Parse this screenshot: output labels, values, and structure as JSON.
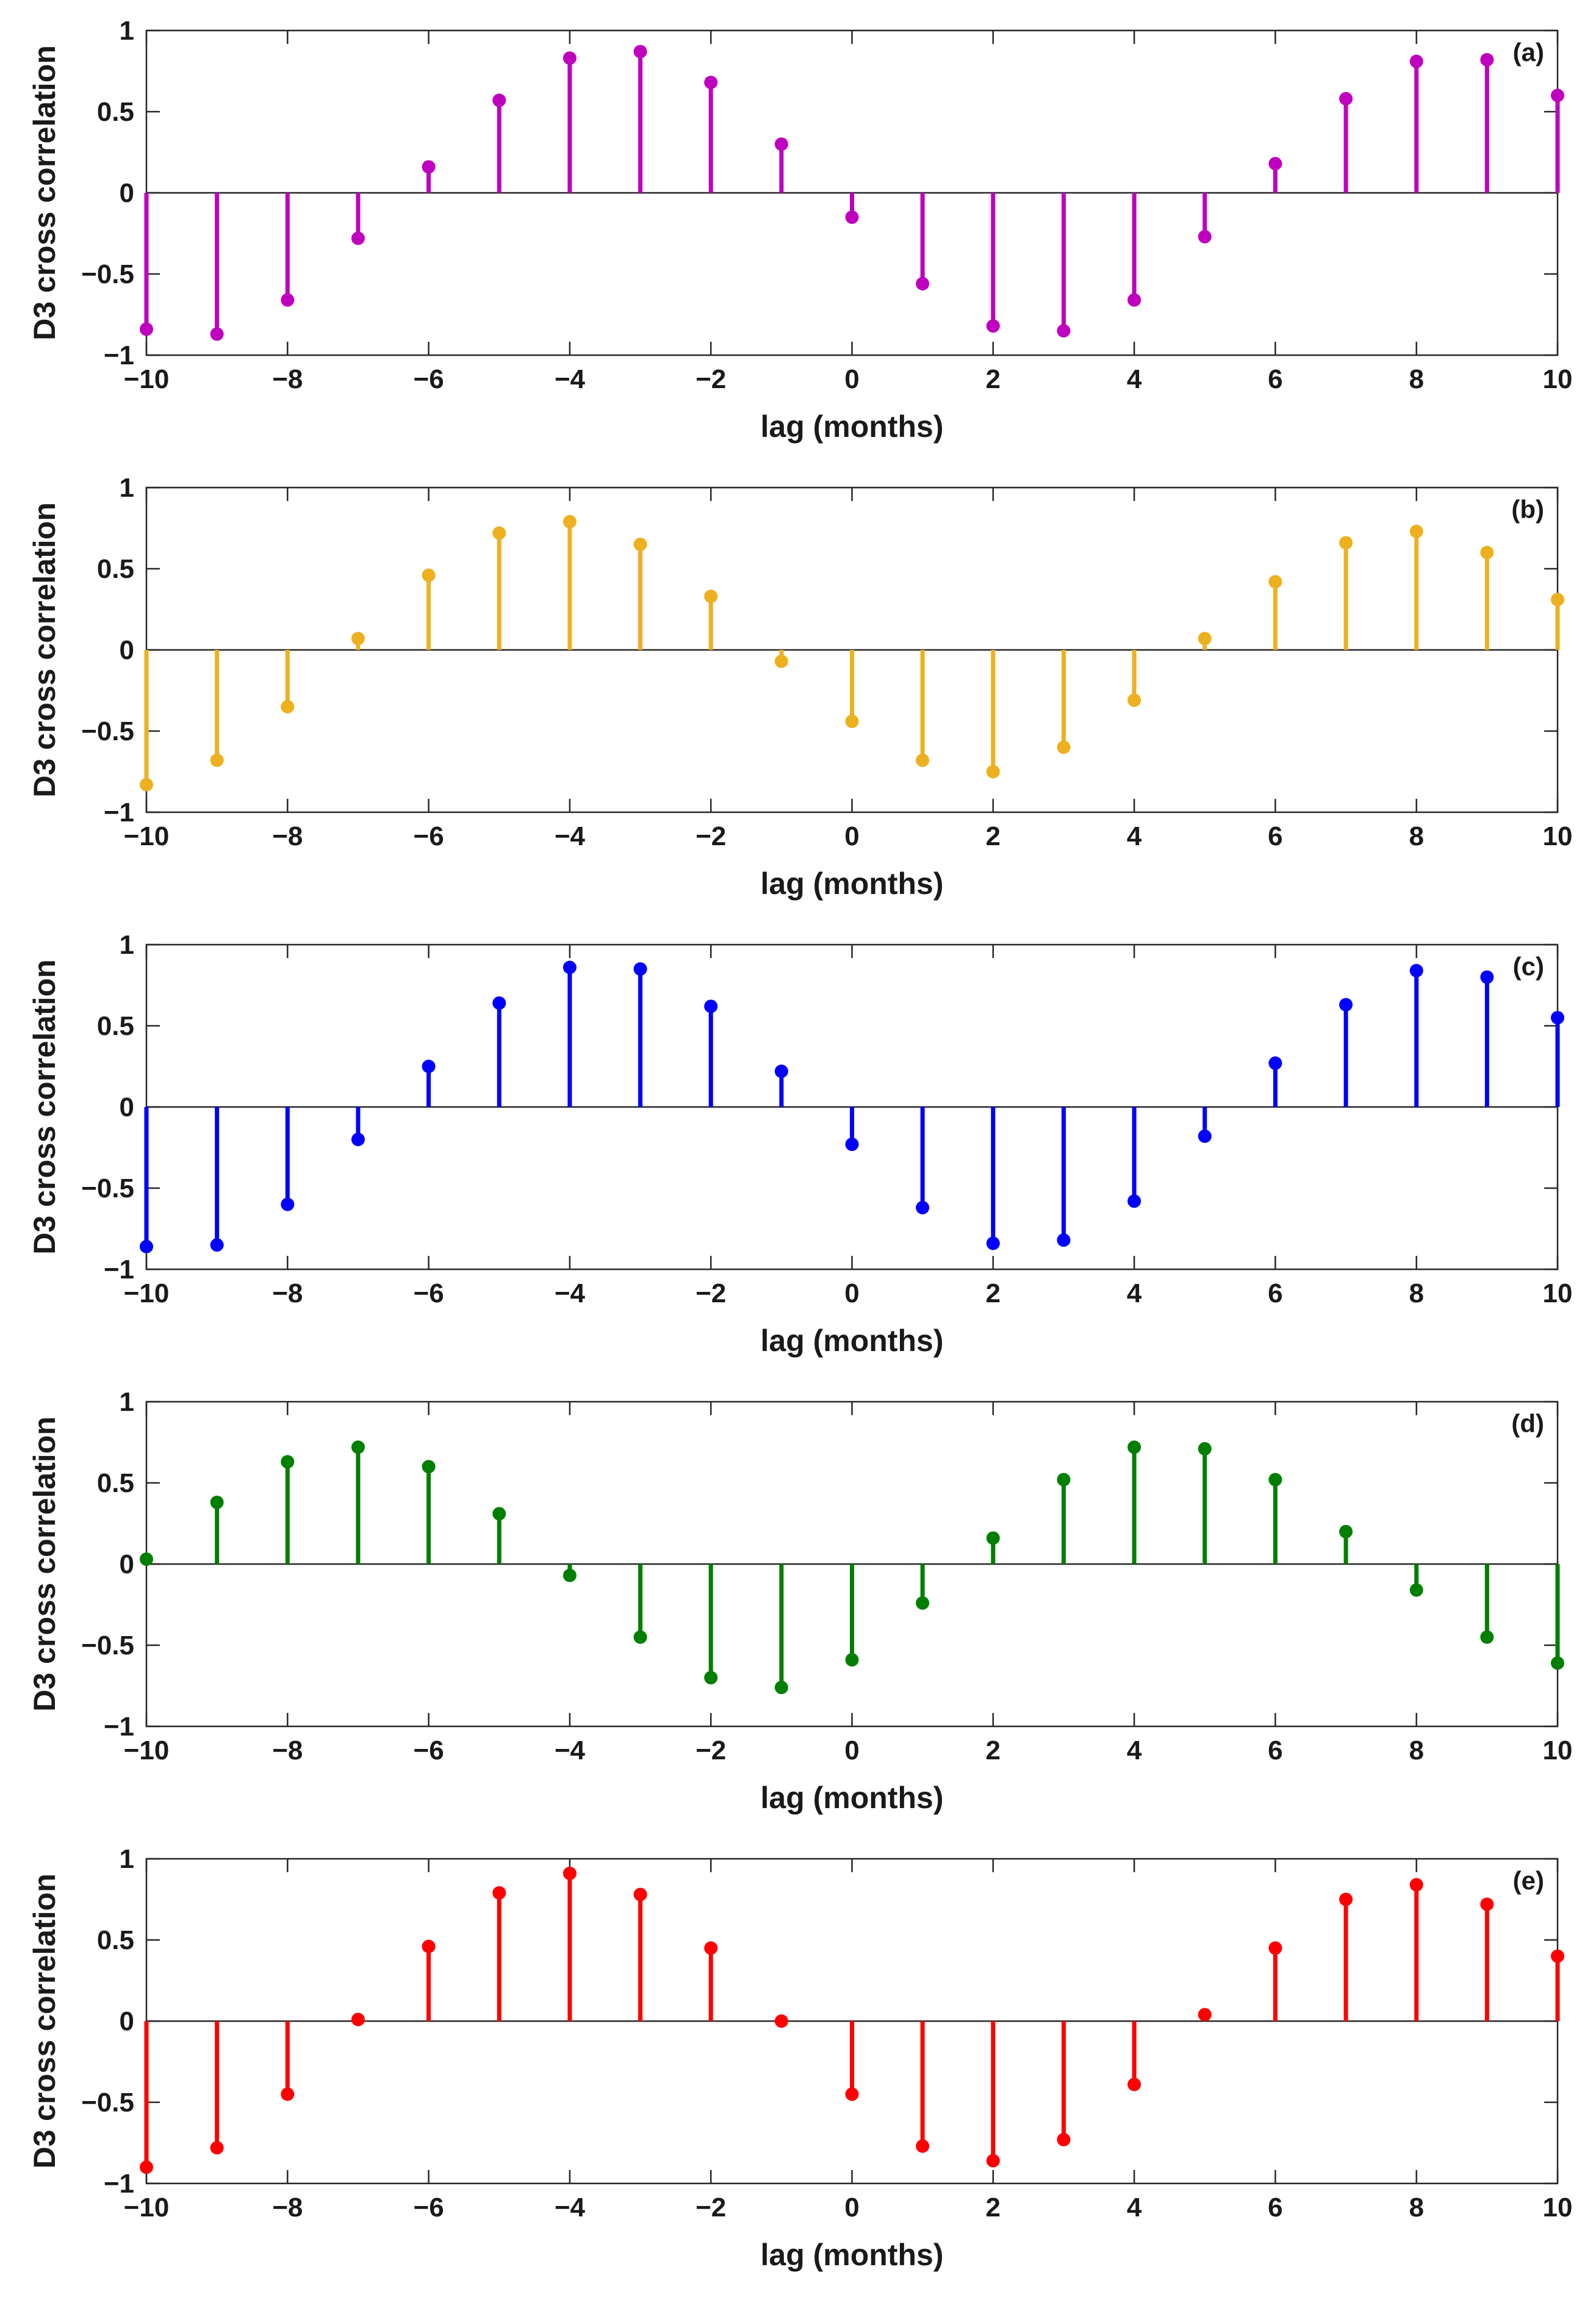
{
  "figure": {
    "x_values": [
      -10,
      -9,
      -8,
      -7,
      -6,
      -5,
      -4,
      -3,
      -2,
      -1,
      0,
      1,
      2,
      3,
      4,
      5,
      6,
      7,
      8,
      9,
      10
    ]
  },
  "chart_data": [
    {
      "type": "stem",
      "panel": "(a)",
      "color": "#bf00bf",
      "xlabel": "lag (months)",
      "ylabel": "D3 cross correlation",
      "xlim": [
        -10,
        10
      ],
      "ylim": [
        -1,
        1
      ],
      "xticks": [
        -10,
        -8,
        -6,
        -4,
        -2,
        0,
        2,
        4,
        6,
        8,
        10
      ],
      "yticks": [
        -1,
        -0.5,
        0,
        0.5,
        1
      ],
      "x": [
        -10,
        -9,
        -8,
        -7,
        -6,
        -5,
        -4,
        -3,
        -2,
        -1,
        0,
        1,
        2,
        3,
        4,
        5,
        6,
        7,
        8,
        9,
        10
      ],
      "values": [
        -0.84,
        -0.87,
        -0.66,
        -0.28,
        0.16,
        0.57,
        0.83,
        0.87,
        0.68,
        0.3,
        -0.15,
        -0.56,
        -0.82,
        -0.85,
        -0.66,
        -0.27,
        0.18,
        0.58,
        0.81,
        0.82,
        0.6
      ]
    },
    {
      "type": "stem",
      "panel": "(b)",
      "color": "#edb120",
      "xlabel": "lag (months)",
      "ylabel": "D3 cross correlation",
      "xlim": [
        -10,
        10
      ],
      "ylim": [
        -1,
        1
      ],
      "xticks": [
        -10,
        -8,
        -6,
        -4,
        -2,
        0,
        2,
        4,
        6,
        8,
        10
      ],
      "yticks": [
        -1,
        -0.5,
        0,
        0.5,
        1
      ],
      "x": [
        -10,
        -9,
        -8,
        -7,
        -6,
        -5,
        -4,
        -3,
        -2,
        -1,
        0,
        1,
        2,
        3,
        4,
        5,
        6,
        7,
        8,
        9,
        10
      ],
      "values": [
        -0.83,
        -0.68,
        -0.35,
        0.07,
        0.46,
        0.72,
        0.79,
        0.65,
        0.33,
        -0.07,
        -0.44,
        -0.68,
        -0.75,
        -0.6,
        -0.31,
        0.07,
        0.42,
        0.66,
        0.73,
        0.6,
        0.31
      ]
    },
    {
      "type": "stem",
      "panel": "(c)",
      "color": "#0000ff",
      "xlabel": "lag (months)",
      "ylabel": "D3 cross correlation",
      "xlim": [
        -10,
        10
      ],
      "ylim": [
        -1,
        1
      ],
      "xticks": [
        -10,
        -8,
        -6,
        -4,
        -2,
        0,
        2,
        4,
        6,
        8,
        10
      ],
      "yticks": [
        -1,
        -0.5,
        0,
        0.5,
        1
      ],
      "x": [
        -10,
        -9,
        -8,
        -7,
        -6,
        -5,
        -4,
        -3,
        -2,
        -1,
        0,
        1,
        2,
        3,
        4,
        5,
        6,
        7,
        8,
        9,
        10
      ],
      "values": [
        -0.86,
        -0.85,
        -0.6,
        -0.2,
        0.25,
        0.64,
        0.86,
        0.85,
        0.62,
        0.22,
        -0.23,
        -0.62,
        -0.84,
        -0.82,
        -0.58,
        -0.18,
        0.27,
        0.63,
        0.84,
        0.8,
        0.55
      ]
    },
    {
      "type": "stem",
      "panel": "(d)",
      "color": "#007f00",
      "xlabel": "lag (months)",
      "ylabel": "D3 cross correlation",
      "xlim": [
        -10,
        10
      ],
      "ylim": [
        -1,
        1
      ],
      "xticks": [
        -10,
        -8,
        -6,
        -4,
        -2,
        0,
        2,
        4,
        6,
        8,
        10
      ],
      "yticks": [
        -1,
        -0.5,
        0,
        0.5,
        1
      ],
      "x": [
        -10,
        -9,
        -8,
        -7,
        -6,
        -5,
        -4,
        -3,
        -2,
        -1,
        0,
        1,
        2,
        3,
        4,
        5,
        6,
        7,
        8,
        9,
        10
      ],
      "values": [
        0.03,
        0.38,
        0.63,
        0.72,
        0.6,
        0.31,
        -0.07,
        -0.45,
        -0.7,
        -0.76,
        -0.59,
        -0.24,
        0.16,
        0.52,
        0.72,
        0.71,
        0.52,
        0.2,
        -0.16,
        -0.45,
        -0.61
      ]
    },
    {
      "type": "stem",
      "panel": "(e)",
      "color": "#ff0000",
      "xlabel": "lag (months)",
      "ylabel": "D3 cross correlation",
      "xlim": [
        -10,
        10
      ],
      "ylim": [
        -1,
        1
      ],
      "xticks": [
        -10,
        -8,
        -6,
        -4,
        -2,
        0,
        2,
        4,
        6,
        8,
        10
      ],
      "yticks": [
        -1,
        -0.5,
        0,
        0.5,
        1
      ],
      "x": [
        -10,
        -9,
        -8,
        -7,
        -6,
        -5,
        -4,
        -3,
        -2,
        -1,
        0,
        1,
        2,
        3,
        4,
        5,
        6,
        7,
        8,
        9,
        10
      ],
      "values": [
        -0.9,
        -0.78,
        -0.45,
        0.01,
        0.46,
        0.79,
        0.91,
        0.78,
        0.45,
        0.0,
        -0.45,
        -0.77,
        -0.86,
        -0.73,
        -0.39,
        0.04,
        0.45,
        0.75,
        0.84,
        0.72,
        0.4
      ]
    }
  ]
}
